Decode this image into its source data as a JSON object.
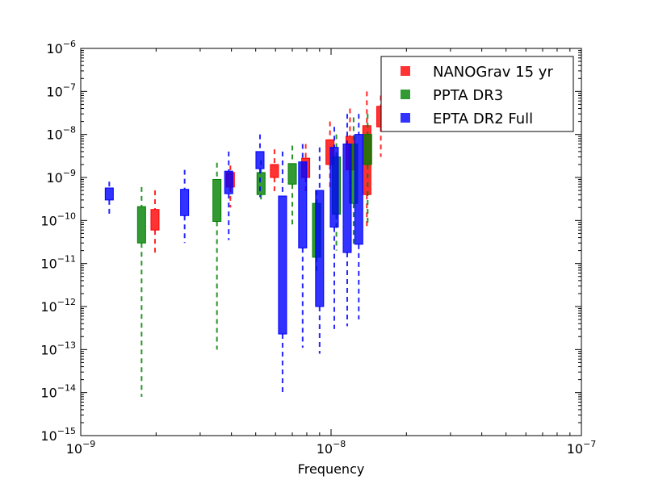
{
  "chart_data": {
    "type": "box",
    "xlabel": "Frequency",
    "ylabel": "",
    "title": "",
    "xscale": "log",
    "yscale": "log",
    "xlim": [
      1e-09,
      1e-07
    ],
    "ylim": [
      1e-15,
      1e-06
    ],
    "grid": false,
    "legend_position": "top-right",
    "x_ticks": [
      {
        "base": "10",
        "exp": "−9",
        "value": 1e-09
      },
      {
        "base": "10",
        "exp": "−8",
        "value": 1e-08
      },
      {
        "base": "10",
        "exp": "−7",
        "value": 1e-07
      }
    ],
    "y_ticks": [
      {
        "base": "10",
        "exp": "−15",
        "value": 1e-15
      },
      {
        "base": "10",
        "exp": "−14",
        "value": 1e-14
      },
      {
        "base": "10",
        "exp": "−13",
        "value": 1e-13
      },
      {
        "base": "10",
        "exp": "−12",
        "value": 1e-12
      },
      {
        "base": "10",
        "exp": "−11",
        "value": 1e-11
      },
      {
        "base": "10",
        "exp": "−10",
        "value": 1e-10
      },
      {
        "base": "10",
        "exp": "−9",
        "value": 1e-09
      },
      {
        "base": "10",
        "exp": "−8",
        "value": 1e-08
      },
      {
        "base": "10",
        "exp": "−7",
        "value": 1e-07
      },
      {
        "base": "10",
        "exp": "−6",
        "value": 1e-06
      }
    ],
    "series": [
      {
        "name": "NANOGrav 15 yr",
        "color": "#ff0000",
        "boxes": [
          {
            "x": 1.98e-09,
            "q1": 6e-11,
            "q3": 1.8e-10,
            "lo": 1.5e-11,
            "hi": 5e-10
          },
          {
            "x": 3.96e-09,
            "q1": 6e-10,
            "q3": 1.3e-09,
            "lo": 2e-10,
            "hi": 1.9e-09
          },
          {
            "x": 5.94e-09,
            "q1": 1e-09,
            "q3": 2e-09,
            "lo": 4e-10,
            "hi": 4.5e-09
          },
          {
            "x": 7.92e-09,
            "q1": 1e-09,
            "q3": 2.8e-09,
            "lo": 4e-10,
            "hi": 6e-09
          },
          {
            "x": 9.9e-09,
            "q1": 2e-09,
            "q3": 7.5e-09,
            "lo": 5e-10,
            "hi": 2e-08
          },
          {
            "x": 1.19e-08,
            "q1": 1.5e-09,
            "q3": 9e-09,
            "lo": 3e-10,
            "hi": 4e-08
          },
          {
            "x": 1.39e-08,
            "q1": 4e-10,
            "q3": 1.6e-08,
            "lo": 7e-11,
            "hi": 1e-07
          },
          {
            "x": 1.58e-08,
            "q1": 1.5e-08,
            "q3": 4.5e-08,
            "lo": 3e-09,
            "hi": 8e-08
          }
        ]
      },
      {
        "name": "PPTA DR3",
        "color": "#008000",
        "boxes": [
          {
            "x": 1.75e-09,
            "q1": 3e-11,
            "q3": 2.1e-10,
            "lo": 8e-15,
            "hi": 6e-10
          },
          {
            "x": 3.5e-09,
            "q1": 9.5e-11,
            "q3": 9e-10,
            "lo": 1e-13,
            "hi": 2.2e-09
          },
          {
            "x": 5.25e-09,
            "q1": 4e-10,
            "q3": 1.3e-09,
            "lo": 2.5e-10,
            "hi": 2.5e-09
          },
          {
            "x": 7e-09,
            "q1": 7e-10,
            "q3": 2.1e-09,
            "lo": 7e-11,
            "hi": 5.5e-09
          },
          {
            "x": 8.75e-09,
            "q1": 1.4e-11,
            "q3": 2.5e-10,
            "lo": 6e-12,
            "hi": 5e-10
          },
          {
            "x": 1.05e-08,
            "q1": 1.4e-10,
            "q3": 3e-09,
            "lo": 2e-11,
            "hi": 1e-08
          },
          {
            "x": 1.23e-08,
            "q1": 2.5e-10,
            "q3": 6e-09,
            "lo": 2.5e-11,
            "hi": 2.5e-08
          },
          {
            "x": 1.4e-08,
            "q1": 2e-09,
            "q3": 1e-08,
            "lo": 8e-11,
            "hi": 3e-08
          }
        ]
      },
      {
        "name": "EPTA DR2 Full",
        "color": "#0000ff",
        "boxes": [
          {
            "x": 1.3e-09,
            "q1": 3e-10,
            "q3": 5.7e-10,
            "lo": 1.2e-10,
            "hi": 8e-10
          },
          {
            "x": 2.6e-09,
            "q1": 1.3e-10,
            "q3": 5.3e-10,
            "lo": 3e-11,
            "hi": 1.5e-09
          },
          {
            "x": 3.9e-09,
            "q1": 4.2e-10,
            "q3": 1.4e-09,
            "lo": 3.5e-11,
            "hi": 4e-09
          },
          {
            "x": 5.2e-09,
            "q1": 1.6e-09,
            "q3": 4e-09,
            "lo": 3.5e-10,
            "hi": 1e-08
          },
          {
            "x": 6.4e-09,
            "q1": 2.3e-13,
            "q3": 3.7e-10,
            "lo": 9e-15,
            "hi": 4e-09
          },
          {
            "x": 7.7e-09,
            "q1": 2.3e-11,
            "q3": 2.3e-09,
            "lo": 1.1e-13,
            "hi": 6e-09
          },
          {
            "x": 9e-09,
            "q1": 1e-12,
            "q3": 5e-10,
            "lo": 8e-14,
            "hi": 5e-09
          },
          {
            "x": 1.03e-08,
            "q1": 7e-11,
            "q3": 5e-09,
            "lo": 3e-13,
            "hi": 1.5e-08
          },
          {
            "x": 1.16e-08,
            "q1": 1.8e-11,
            "q3": 6e-09,
            "lo": 3.5e-13,
            "hi": 3e-08
          },
          {
            "x": 1.29e-08,
            "q1": 2.8e-11,
            "q3": 1e-08,
            "lo": 5e-13,
            "hi": 3e-08
          }
        ]
      }
    ]
  }
}
